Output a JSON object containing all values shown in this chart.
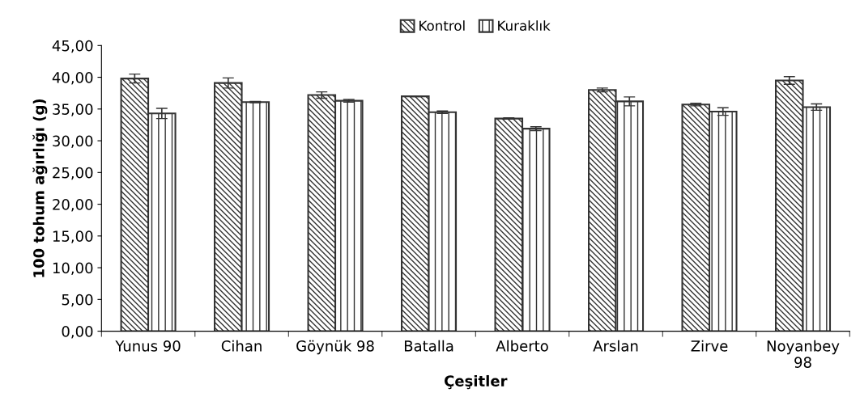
{
  "chart_data": {
    "type": "bar",
    "xlabel": "Çeşitler",
    "ylabel": "100 tohum ağırlığı (g)",
    "categories": [
      "Yunus 90",
      "Cihan",
      "Göynük 98",
      "Batalla",
      "Alberto",
      "Arslan",
      "Zirve",
      "Noyanbey 98"
    ],
    "series": [
      {
        "name": "Kontrol",
        "color": "#333333",
        "values": [
          39.8,
          39.1,
          37.2,
          37.0,
          33.5,
          38.0,
          35.7,
          39.5
        ],
        "errors": [
          0.7,
          0.8,
          0.5,
          0.05,
          0.1,
          0.3,
          0.2,
          0.6
        ]
      },
      {
        "name": "Kuraklık",
        "color": "#333333",
        "values": [
          34.3,
          36.1,
          36.3,
          34.5,
          31.9,
          36.2,
          34.6,
          35.3
        ],
        "errors": [
          0.8,
          0.1,
          0.2,
          0.2,
          0.3,
          0.7,
          0.6,
          0.5
        ]
      }
    ],
    "ylim": [
      0,
      45
    ],
    "yticks": [
      {
        "value": 0,
        "label": "0,00"
      },
      {
        "value": 5,
        "label": "5,00"
      },
      {
        "value": 10,
        "label": "10,00"
      },
      {
        "value": 15,
        "label": "15,00"
      },
      {
        "value": 20,
        "label": "20,00"
      },
      {
        "value": 25,
        "label": "25,00"
      },
      {
        "value": 30,
        "label": "30,00"
      },
      {
        "value": 35,
        "label": "35,00"
      },
      {
        "value": 40,
        "label": "40,00"
      },
      {
        "value": 45,
        "label": "45,00"
      }
    ],
    "legend": "top",
    "grid": false
  }
}
